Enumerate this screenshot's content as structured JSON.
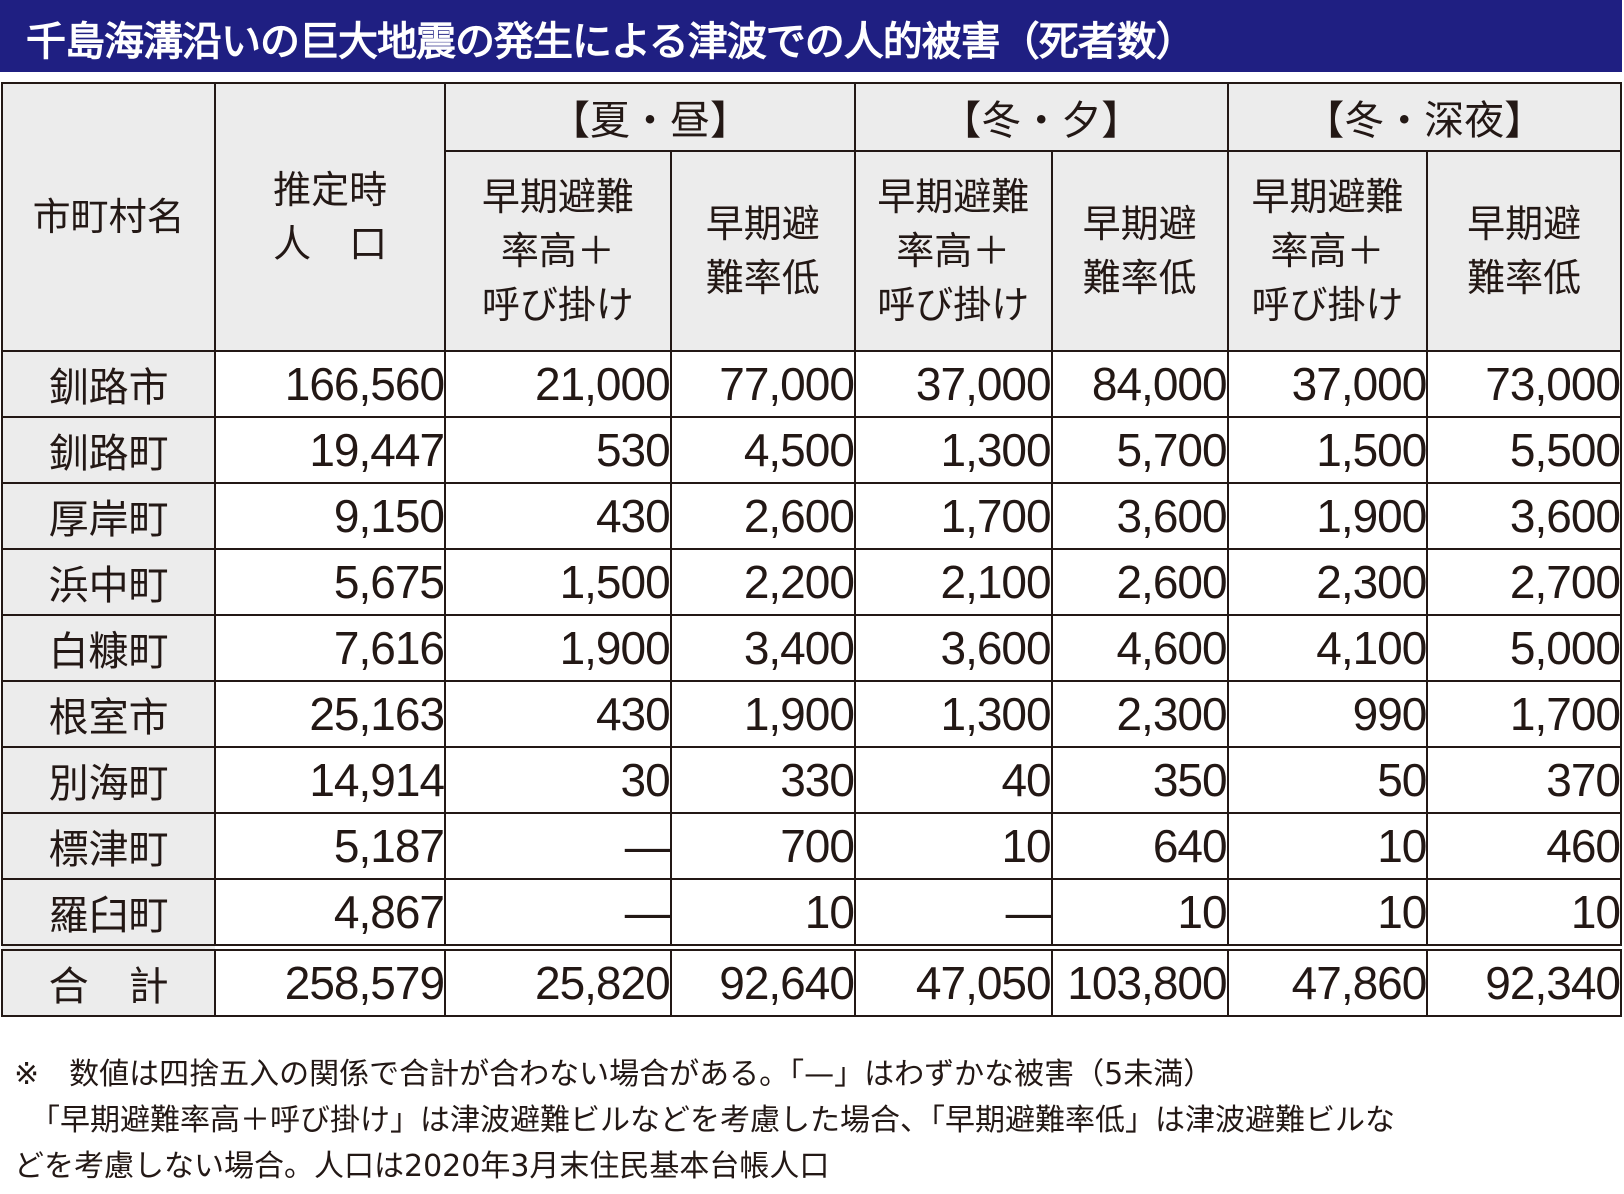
{
  "title": "千島海溝沿いの巨大地震の発生による津波での人的被害（死者数）",
  "colors": {
    "title_bg": "#1f1f82",
    "header_bg": "#ececec",
    "text": "#231815"
  },
  "table": {
    "col_municipality": "市町村名",
    "col_population_l1": "推定時",
    "col_population_l2": "人　口",
    "groups": [
      {
        "label": "【夏・昼】"
      },
      {
        "label": "【冬・夕】"
      },
      {
        "label": "【冬・深夜】"
      }
    ],
    "sub_high": {
      "l1": "早期避難",
      "l2": "率高＋",
      "l3": "呼び掛け"
    },
    "sub_low": {
      "l1": "早期避",
      "l2": "難率低"
    },
    "rows": [
      {
        "name": "釧路市",
        "pop": "166,560",
        "v": [
          "21,000",
          "77,000",
          "37,000",
          "84,000",
          "37,000",
          "73,000"
        ]
      },
      {
        "name": "釧路町",
        "pop": "19,447",
        "v": [
          "530",
          "4,500",
          "1,300",
          "5,700",
          "1,500",
          "5,500"
        ]
      },
      {
        "name": "厚岸町",
        "pop": "9,150",
        "v": [
          "430",
          "2,600",
          "1,700",
          "3,600",
          "1,900",
          "3,600"
        ]
      },
      {
        "name": "浜中町",
        "pop": "5,675",
        "v": [
          "1,500",
          "2,200",
          "2,100",
          "2,600",
          "2,300",
          "2,700"
        ]
      },
      {
        "name": "白糠町",
        "pop": "7,616",
        "v": [
          "1,900",
          "3,400",
          "3,600",
          "4,600",
          "4,100",
          "5,000"
        ]
      },
      {
        "name": "根室市",
        "pop": "25,163",
        "v": [
          "430",
          "1,900",
          "1,300",
          "2,300",
          "990",
          "1,700"
        ]
      },
      {
        "name": "別海町",
        "pop": "14,914",
        "v": [
          "30",
          "330",
          "40",
          "350",
          "50",
          "370"
        ]
      },
      {
        "name": "標津町",
        "pop": "5,187",
        "v": [
          "—",
          "700",
          "10",
          "640",
          "10",
          "460"
        ]
      },
      {
        "name": "羅臼町",
        "pop": "4,867",
        "v": [
          "—",
          "10",
          "—",
          "10",
          "10",
          "10"
        ]
      }
    ],
    "total": {
      "name": "合　計",
      "pop": "258,579",
      "v": [
        "25,820",
        "92,640",
        "47,050",
        "103,800",
        "47,860",
        "92,340"
      ]
    }
  },
  "notes": {
    "line1": "※　数値は四捨五入の関係で合計が合わない場合がある。「—」はわずかな被害（5未満）",
    "line2": "「早期避難率高＋呼び掛け」は津波避難ビルなどを考慮した場合、「早期避難率低」は津波避難ビルな",
    "line3": "どを考慮しない場合。人口は2020年3月末住民基本台帳人口"
  }
}
